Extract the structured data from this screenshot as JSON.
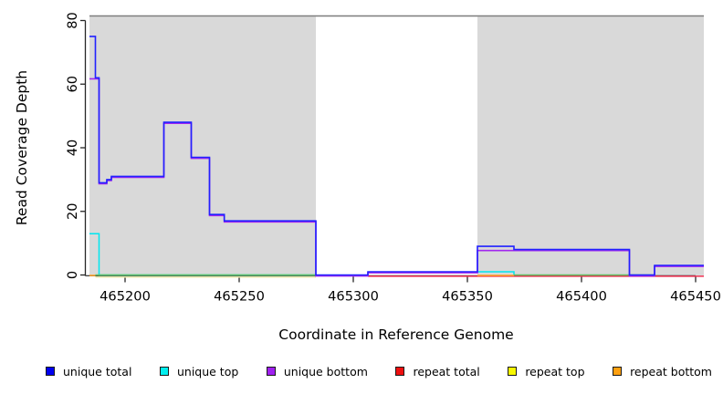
{
  "figure": {
    "y_axis_label": "Read Coverage Depth",
    "x_axis_label": "Coordinate in Reference Genome"
  },
  "colors": {
    "shaded_region": "#d9d9d9",
    "top_border": "#7c7c7c",
    "axis": "#262626",
    "unique_total": "#2121ff",
    "unique_top": "#00e6ef",
    "unique_bottom": "#a228ee",
    "repeat_total": "#ef3050",
    "repeat_top": "#f8f800",
    "repeat_bottom": "#ff9f1e",
    "baseline_green": "#63c063",
    "baseline_pale_yellow": "#eae6a8"
  },
  "chart_data": {
    "type": "line",
    "subtype": "step-coverage",
    "title": "",
    "xlabel": "Coordinate in Reference Genome",
    "ylabel": "Read Coverage Depth",
    "xlim": [
      465184.4,
      465453.6
    ],
    "ylim": [
      0,
      80
    ],
    "x_ticks": [
      465200,
      465250,
      465300,
      465350,
      465400,
      465450
    ],
    "y_ticks": [
      0,
      20,
      40,
      60,
      80
    ],
    "grid": false,
    "legend_position": "bottom",
    "shaded_regions": [
      [
        465184.4,
        465283.6
      ],
      [
        465354.4,
        465453.6
      ]
    ],
    "series": [
      {
        "name": "baseline pale yellow",
        "color": "#eae6a8",
        "width": 1.5,
        "dy": 2.2,
        "segments": [
          [
            [
              465187,
              0
            ],
            [
              465283.6,
              0
            ]
          ]
        ]
      },
      {
        "name": "unique top",
        "color": "#00e6ef",
        "width": 1.5,
        "dy": 0,
        "segments": [
          [
            [
              465184.4,
              13
            ],
            [
              465188.6,
              0
            ],
            [
              465283.6,
              0
            ]
          ],
          [
            [
              465354.4,
              1
            ],
            [
              465370.4,
              0
            ]
          ]
        ]
      },
      {
        "name": "repeat total",
        "color": "#ef3050",
        "width": 1.5,
        "dy": 1.4,
        "segments": [
          [
            [
              465306.4,
              0
            ],
            [
              465453.6,
              0
            ]
          ]
        ]
      },
      {
        "name": "baseline green",
        "color": "#63c063",
        "width": 1.5,
        "dy": 0,
        "segments": [
          [
            [
              465187,
              0
            ],
            [
              465283.6,
              0
            ]
          ],
          [
            [
              465370.4,
              0
            ],
            [
              465432,
              0
            ]
          ]
        ]
      },
      {
        "name": "repeat bottom",
        "color": "#ff9f1e",
        "width": 1.5,
        "dy": 0.5,
        "segments": [
          [
            [
              465184.4,
              0
            ],
            [
              465187,
              0
            ]
          ],
          [
            [
              465354.4,
              0
            ],
            [
              465370.4,
              0
            ]
          ]
        ]
      },
      {
        "name": "unique bottom",
        "color": "#a228ee",
        "width": 1.6,
        "dy": 1.1,
        "segments": [
          [
            [
              465184.4,
              62
            ],
            [
              465188.6,
              29
            ],
            [
              465192,
              30
            ],
            [
              465194,
              31
            ],
            [
              465217,
              48
            ],
            [
              465229,
              37
            ],
            [
              465237,
              19
            ],
            [
              465243.5,
              17
            ],
            [
              465283.6,
              0
            ],
            [
              465306.4,
              1
            ],
            [
              465354.4,
              8
            ],
            [
              465421,
              0
            ],
            [
              465432,
              3
            ],
            [
              465453.6,
              3
            ]
          ]
        ]
      },
      {
        "name": "unique total",
        "color": "#2121ff",
        "width": 1.6,
        "dy": 0,
        "segments": [
          [
            [
              465184.4,
              75
            ],
            [
              465187,
              62
            ],
            [
              465188.6,
              29
            ],
            [
              465192,
              30
            ],
            [
              465194,
              31
            ],
            [
              465217,
              48
            ],
            [
              465229,
              37
            ],
            [
              465237,
              19
            ],
            [
              465243.5,
              17
            ],
            [
              465283.6,
              0
            ],
            [
              465306.4,
              1
            ],
            [
              465354.4,
              9
            ],
            [
              465370.4,
              8
            ],
            [
              465421,
              0
            ],
            [
              465432,
              3
            ],
            [
              465453.6,
              3
            ]
          ]
        ]
      }
    ]
  },
  "legend": {
    "items": [
      {
        "label": "unique total",
        "color": "#0000f0"
      },
      {
        "label": "unique top",
        "color": "#00efef"
      },
      {
        "label": "unique bottom",
        "color": "#a020f0"
      },
      {
        "label": "repeat total",
        "color": "#ee1010"
      },
      {
        "label": "repeat top",
        "color": "#f8f800"
      },
      {
        "label": "repeat bottom",
        "color": "#ffa010"
      }
    ]
  }
}
